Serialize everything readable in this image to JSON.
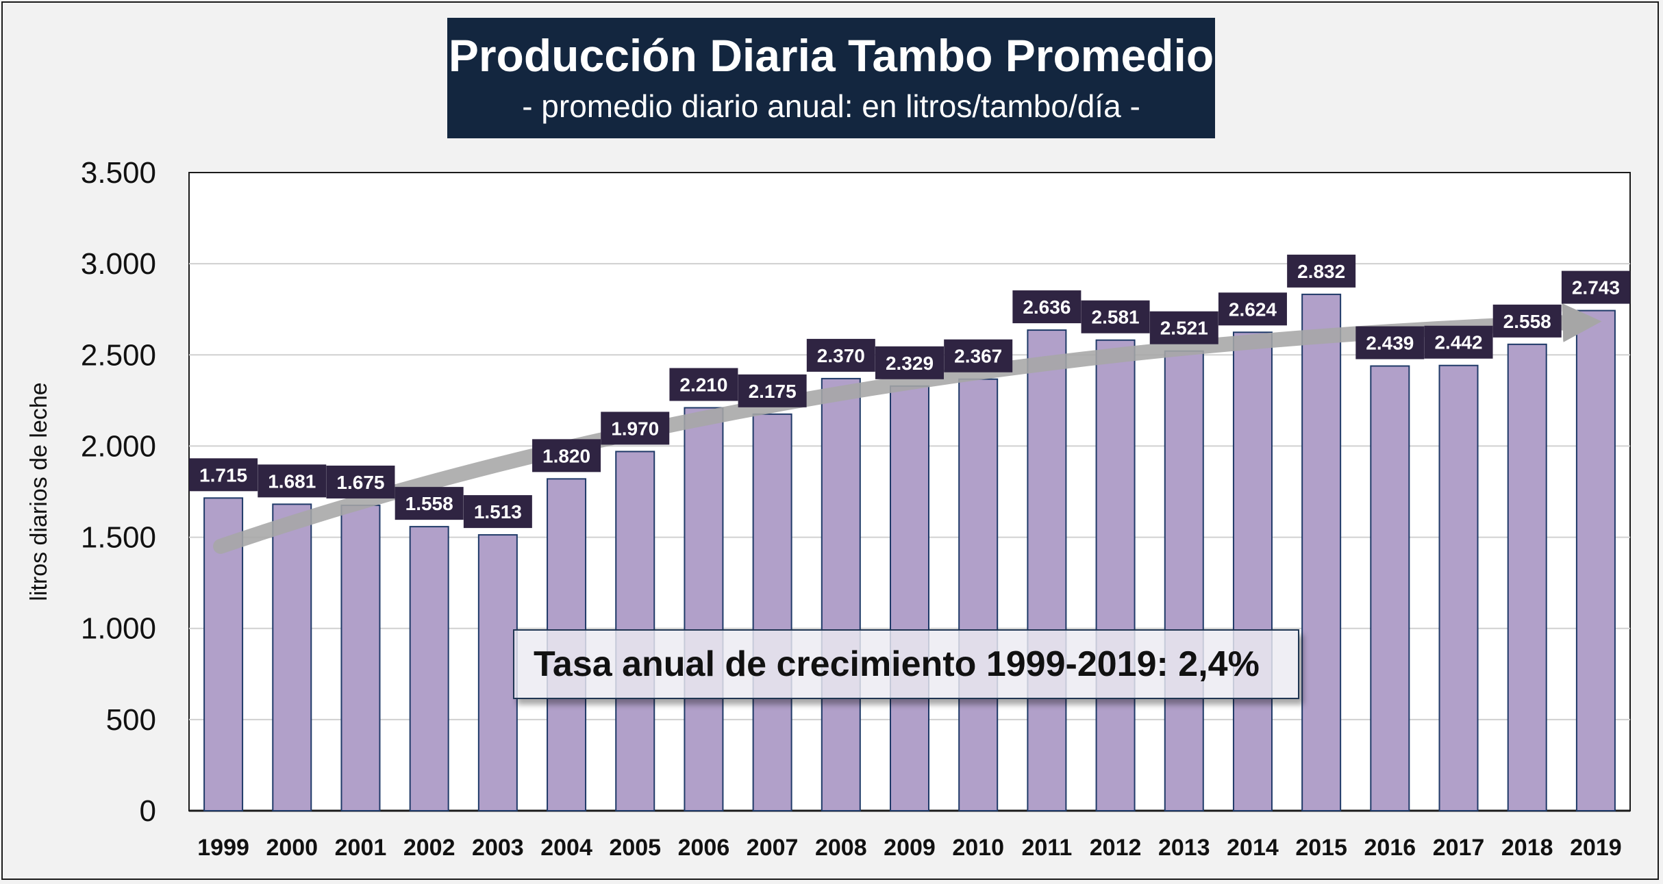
{
  "chart_data": {
    "type": "bar",
    "title": "Producción Diaria Tambo Promedio",
    "subtitle": "- promedio diario anual: en litros/tambo/día -",
    "ylabel": "litros diarios de leche",
    "xlabel": "",
    "ylim": [
      0,
      3500
    ],
    "yticks": [
      0,
      500,
      1000,
      1500,
      2000,
      2500,
      3000,
      3500
    ],
    "ytick_labels": [
      "0",
      "500",
      "1.000",
      "1.500",
      "2.000",
      "2.500",
      "3.000",
      "3.500"
    ],
    "categories": [
      "1999",
      "2000",
      "2001",
      "2002",
      "2003",
      "2004",
      "2005",
      "2006",
      "2007",
      "2008",
      "2009",
      "2010",
      "2011",
      "2012",
      "2013",
      "2014",
      "2015",
      "2016",
      "2017",
      "2018",
      "2019"
    ],
    "values": [
      1715,
      1681,
      1675,
      1558,
      1513,
      1820,
      1970,
      2210,
      2175,
      2370,
      2329,
      2367,
      2636,
      2581,
      2521,
      2624,
      2832,
      2439,
      2442,
      2558,
      2743
    ],
    "value_labels": [
      "1.715",
      "1.681",
      "1.675",
      "1.558",
      "1.513",
      "1.820",
      "1.970",
      "2.210",
      "2.175",
      "2.370",
      "2.329",
      "2.367",
      "2.636",
      "2.581",
      "2.521",
      "2.624",
      "2.832",
      "2.439",
      "2.442",
      "2.558",
      "2.743"
    ],
    "grid": true,
    "annotation": "Tasa anual de crecimiento 1999-2019: 2,4%",
    "trend": {
      "start_category": "1999",
      "start_value": 1450,
      "end_category": "2019",
      "end_value": 2680
    },
    "colors": {
      "bar": "#b1a0c9",
      "bar_edge": "#1f3a68",
      "label_bg": "#2f2442",
      "label_text": "#ffffff",
      "trend": "#a6a6a6",
      "title_bg": "#13263f"
    }
  }
}
